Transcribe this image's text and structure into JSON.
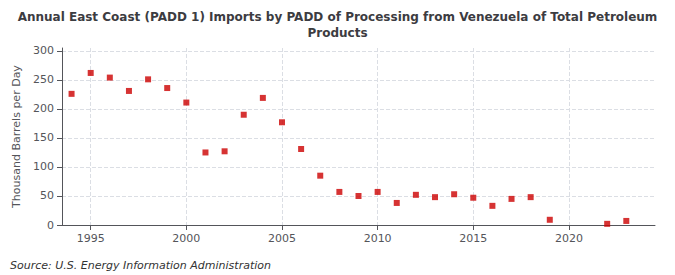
{
  "chart_data": {
    "type": "scatter",
    "title": "Annual East Coast (PADD 1) Imports by PADD of Processing from Venezuela of Total Petroleum\nProducts",
    "ylabel": "Thousand Barrels per Day",
    "annotations": [
      "Source: U.S. Energy Information Administration"
    ],
    "x": [
      1994,
      1995,
      1996,
      1997,
      1998,
      1999,
      2000,
      2001,
      2002,
      2003,
      2004,
      2005,
      2006,
      2007,
      2008,
      2009,
      2010,
      2011,
      2012,
      2013,
      2014,
      2015,
      2016,
      2017,
      2018,
      2019,
      2022,
      2023
    ],
    "values": [
      226,
      262,
      254,
      231,
      251,
      236,
      211,
      125,
      127,
      190,
      219,
      177,
      131,
      85,
      57,
      50,
      57,
      38,
      52,
      48,
      53,
      47,
      33,
      45,
      48,
      9,
      2,
      7
    ],
    "color": "#cc0000",
    "marker": "square",
    "xlim": [
      1993.5,
      2024.5
    ],
    "ylim": [
      0,
      305
    ],
    "xticks": [
      1995,
      2000,
      2005,
      2010,
      2015,
      2020
    ],
    "yticks": [
      0,
      50,
      100,
      150,
      200,
      250,
      300
    ],
    "grid": true
  }
}
